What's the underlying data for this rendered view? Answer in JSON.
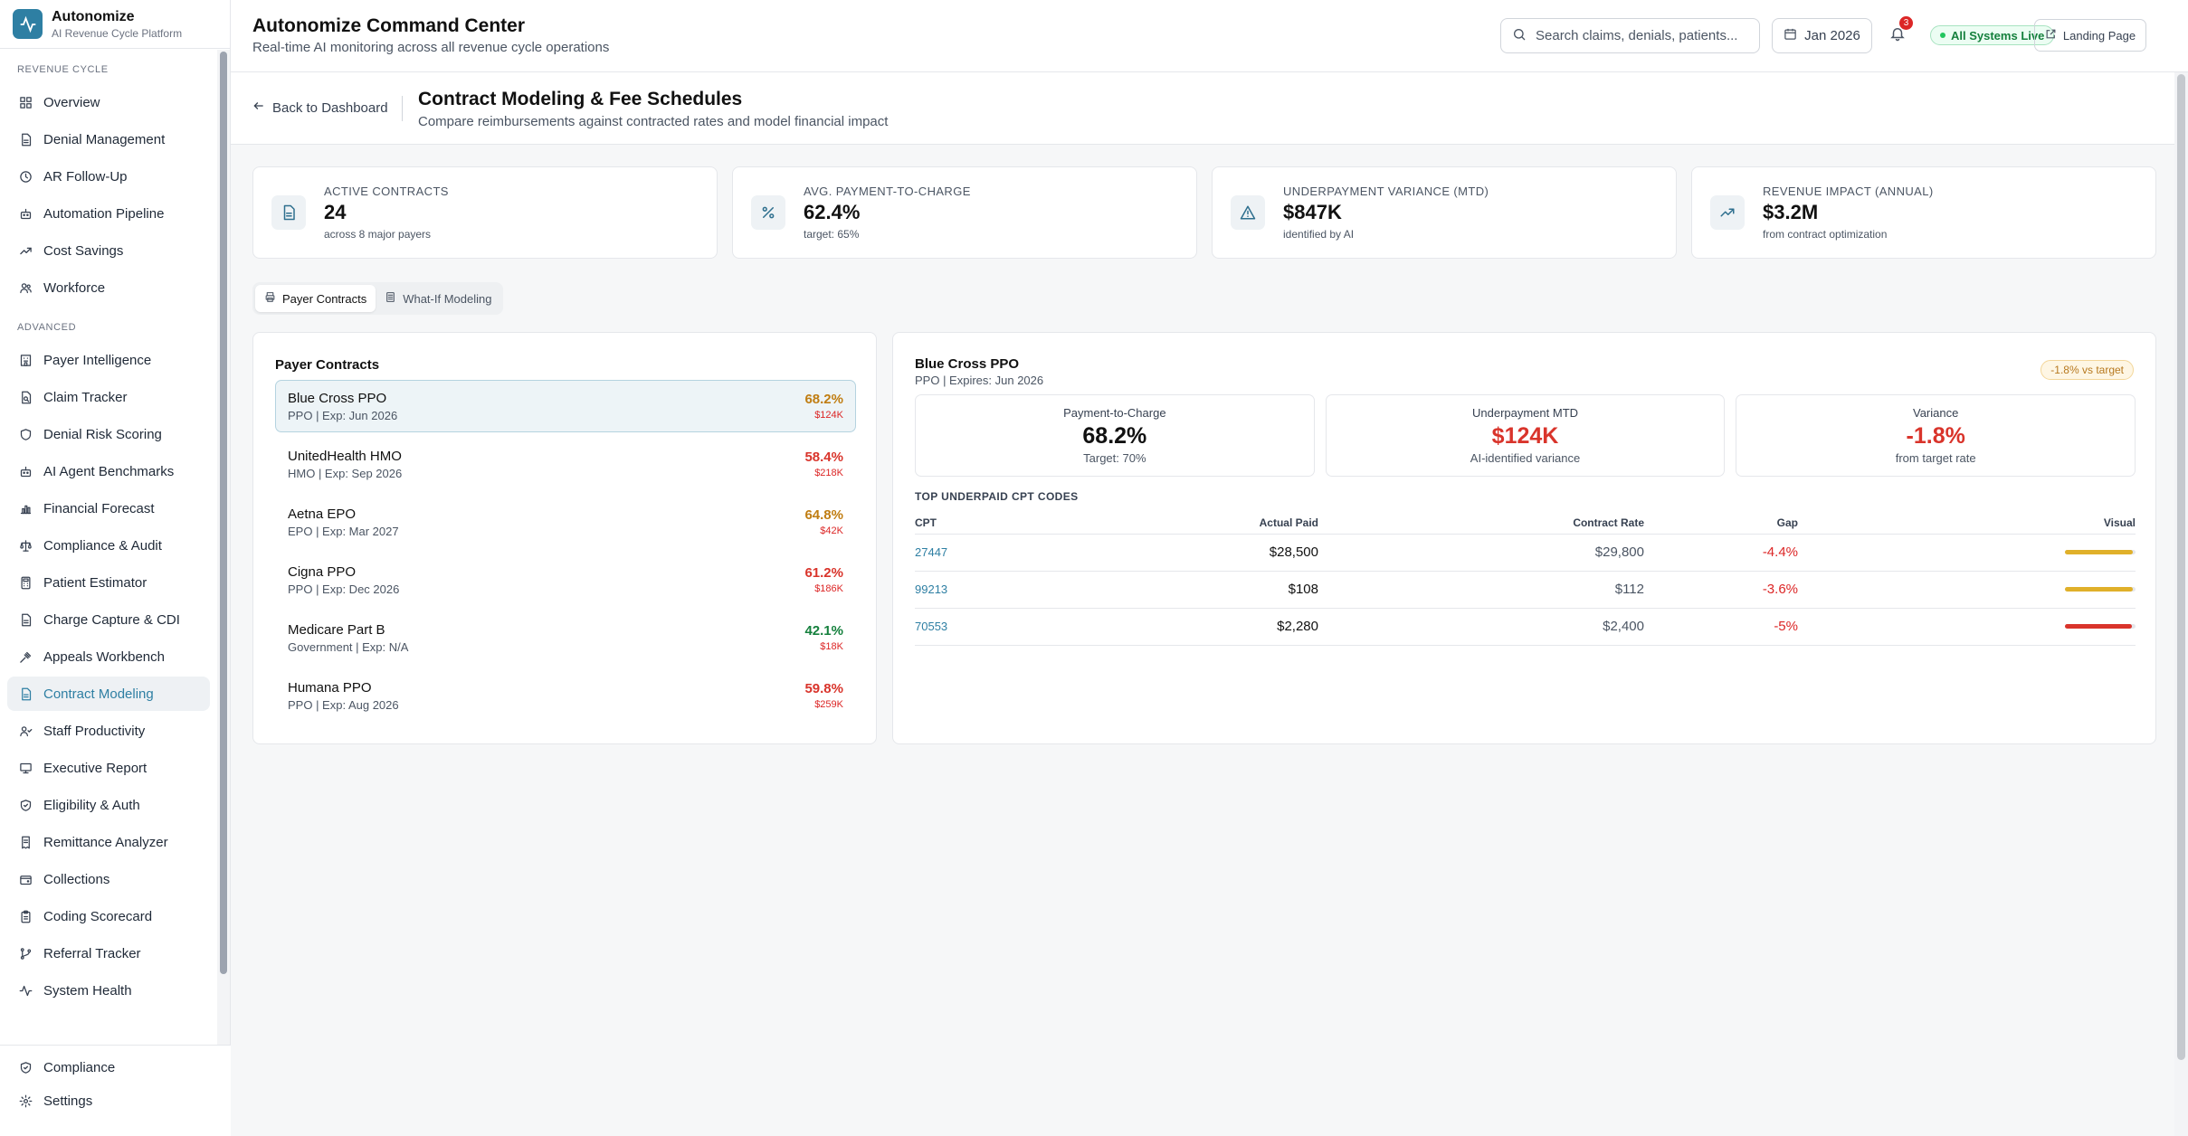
{
  "brand": {
    "name": "Autonomize",
    "subtitle": "AI Revenue Cycle Platform"
  },
  "sidebar": {
    "sections": [
      {
        "label": "REVENUE CYCLE",
        "items": [
          {
            "label": "Overview",
            "icon": "grid-icon"
          },
          {
            "label": "Denial Management",
            "icon": "file-icon"
          },
          {
            "label": "AR Follow-Up",
            "icon": "clock-icon"
          },
          {
            "label": "Automation Pipeline",
            "icon": "bot-icon"
          },
          {
            "label": "Cost Savings",
            "icon": "trend-icon"
          },
          {
            "label": "Workforce",
            "icon": "users-icon"
          }
        ]
      },
      {
        "label": "ADVANCED",
        "items": [
          {
            "label": "Payer Intelligence",
            "icon": "building-icon"
          },
          {
            "label": "Claim Tracker",
            "icon": "file-search-icon"
          },
          {
            "label": "Denial Risk Scoring",
            "icon": "shield-icon"
          },
          {
            "label": "AI Agent Benchmarks",
            "icon": "bot-icon"
          },
          {
            "label": "Financial Forecast",
            "icon": "bar-chart-icon"
          },
          {
            "label": "Compliance & Audit",
            "icon": "scale-icon"
          },
          {
            "label": "Patient Estimator",
            "icon": "calculator-icon"
          },
          {
            "label": "Charge Capture & CDI",
            "icon": "file-icon"
          },
          {
            "label": "Appeals Workbench",
            "icon": "gavel-icon"
          },
          {
            "label": "Contract Modeling",
            "icon": "file-icon",
            "active": true
          },
          {
            "label": "Staff Productivity",
            "icon": "user-check-icon"
          },
          {
            "label": "Executive Report",
            "icon": "monitor-icon"
          },
          {
            "label": "Eligibility & Auth",
            "icon": "shield-check-icon"
          },
          {
            "label": "Remittance Analyzer",
            "icon": "receipt-icon"
          },
          {
            "label": "Collections",
            "icon": "wallet-icon"
          },
          {
            "label": "Coding Scorecard",
            "icon": "clipboard-icon"
          },
          {
            "label": "Referral Tracker",
            "icon": "git-branch-icon"
          },
          {
            "label": "System Health",
            "icon": "activity-icon"
          }
        ]
      }
    ],
    "bottom": [
      {
        "label": "Compliance",
        "icon": "shield-check-icon"
      },
      {
        "label": "Settings",
        "icon": "gear-icon"
      }
    ]
  },
  "header": {
    "title": "Autonomize Command Center",
    "subtitle": "Real-time AI monitoring across all revenue cycle operations",
    "search_placeholder": "Search claims, denials, patients...",
    "date": "Jan 2026",
    "notification_count": "3",
    "status": "All Systems Live",
    "landing": "Landing Page"
  },
  "page": {
    "back": "Back to Dashboard",
    "title": "Contract Modeling & Fee Schedules",
    "subtitle": "Compare reimbursements against contracted rates and model financial impact"
  },
  "kpis": [
    {
      "label": "Active Contracts",
      "value": "24",
      "note": "across 8 major payers",
      "icon": "file-icon"
    },
    {
      "label": "Avg. Payment-to-Charge",
      "value": "62.4%",
      "note": "target: 65%",
      "icon": "percent-icon"
    },
    {
      "label": "Underpayment Variance (MTD)",
      "value": "$847K",
      "note": "identified by AI",
      "icon": "alert-triangle-icon"
    },
    {
      "label": "Revenue Impact (Annual)",
      "value": "$3.2M",
      "note": "from contract optimization",
      "icon": "trending-up-icon"
    }
  ],
  "tabs": [
    {
      "label": "Payer Contracts",
      "active": true
    },
    {
      "label": "What-If Modeling",
      "active": false
    }
  ],
  "contracts": {
    "title": "Payer Contracts",
    "items": [
      {
        "name": "Blue Cross PPO",
        "meta": "PPO | Exp: Jun 2026",
        "pct": "68.2%",
        "amount": "$124K",
        "color": "#c07d12"
      },
      {
        "name": "UnitedHealth HMO",
        "meta": "HMO | Exp: Sep 2026",
        "pct": "58.4%",
        "amount": "$218K",
        "color": "#d9342b"
      },
      {
        "name": "Aetna EPO",
        "meta": "EPO | Exp: Mar 2027",
        "pct": "64.8%",
        "amount": "$42K",
        "color": "#c07d12"
      },
      {
        "name": "Cigna PPO",
        "meta": "PPO | Exp: Dec 2026",
        "pct": "61.2%",
        "amount": "$186K",
        "color": "#d9342b"
      },
      {
        "name": "Medicare Part B",
        "meta": "Government | Exp: N/A",
        "pct": "42.1%",
        "amount": "$18K",
        "color": "#15803d"
      },
      {
        "name": "Humana PPO",
        "meta": "PPO | Exp: Aug 2026",
        "pct": "59.8%",
        "amount": "$259K",
        "color": "#d9342b"
      }
    ]
  },
  "detail": {
    "name": "Blue Cross PPO",
    "meta": "PPO | Expires: Jun 2026",
    "badge": "-1.8% vs target",
    "metrics": [
      {
        "label": "Payment-to-Charge",
        "value": "68.2%",
        "note": "Target: 70%",
        "color": "#111111"
      },
      {
        "label": "Underpayment MTD",
        "value": "$124K",
        "note": "AI-identified variance",
        "color": "#d9342b"
      },
      {
        "label": "Variance",
        "value": "-1.8%",
        "note": "from target rate",
        "color": "#d9342b"
      }
    ],
    "table_title": "TOP UNDERPAID CPT CODES",
    "columns": {
      "cpt": "CPT",
      "actual": "Actual Paid",
      "contract": "Contract Rate",
      "gap": "Gap",
      "visual": "Visual"
    },
    "rows": [
      {
        "cpt": "27447",
        "actual": "$28,500",
        "contract": "$29,800",
        "gap": "-4.4%",
        "bar": 0.956,
        "bar_color": "#e0b02a"
      },
      {
        "cpt": "99213",
        "actual": "$108",
        "contract": "$112",
        "gap": "-3.6%",
        "bar": 0.964,
        "bar_color": "#e0b02a"
      },
      {
        "cpt": "70553",
        "actual": "$2,280",
        "contract": "$2,400",
        "gap": "-5%",
        "bar": 0.95,
        "bar_color": "#d9342b"
      }
    ]
  }
}
